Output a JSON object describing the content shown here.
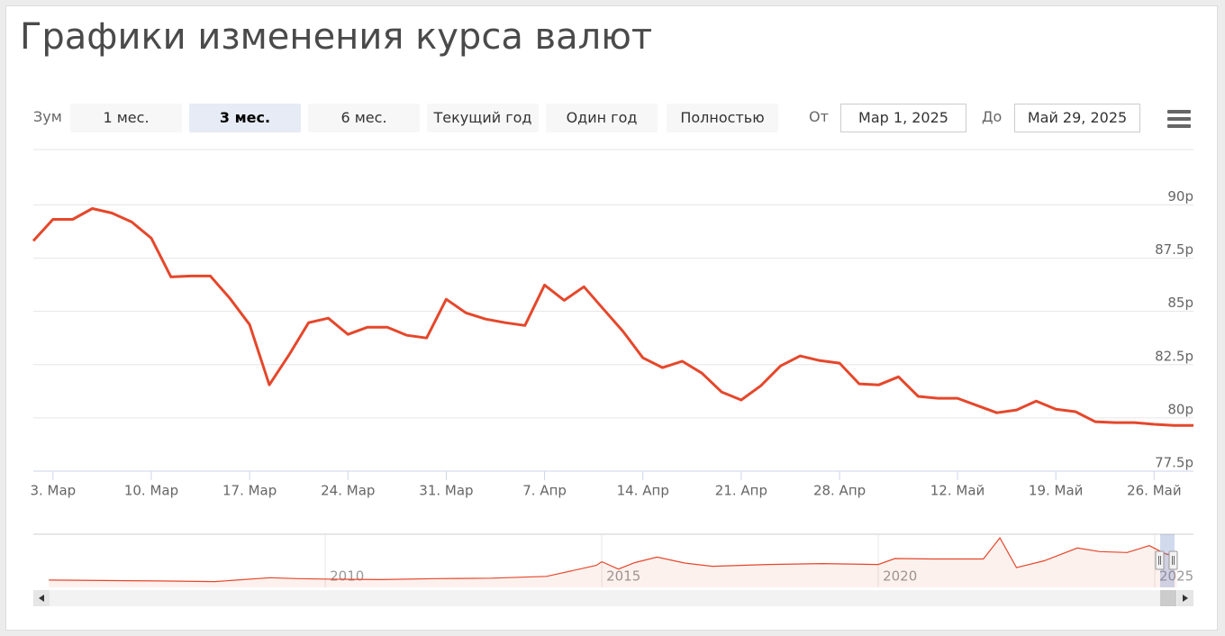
{
  "page": {
    "title": "Графики изменения курса валют",
    "zoom_label": "Зум",
    "zoom_buttons": [
      "1 мес.",
      "3 мес.",
      "6 мес.",
      "Текущий год",
      "Один год",
      "Полностью"
    ],
    "selected_zoom": 1,
    "from_label": "От",
    "from": "Мар 1, 2025",
    "to_label": "До",
    "to": "Май 29, 2025"
  },
  "chart_data": [
    {
      "type": "line",
      "color": "#e5472b",
      "categories": [
        null,
        "3. Мар",
        null,
        null,
        null,
        null,
        "10. Мар",
        null,
        null,
        null,
        null,
        "17. Мар",
        null,
        null,
        null,
        null,
        "24. Мар",
        null,
        null,
        null,
        null,
        "31. Мар",
        null,
        null,
        null,
        null,
        "7. Апр",
        null,
        null,
        null,
        null,
        "14. Апр",
        null,
        null,
        null,
        null,
        "21. Апр",
        null,
        null,
        null,
        null,
        "28. Апр",
        null,
        null,
        null,
        null,
        null,
        "12. Май",
        null,
        null,
        null,
        null,
        "19. Май",
        null,
        null,
        null,
        null,
        "26. Май",
        null,
        null
      ],
      "values": [
        88.31,
        89.32,
        89.32,
        89.83,
        89.62,
        89.2,
        88.44,
        86.62,
        86.66,
        86.66,
        85.61,
        84.38,
        81.55,
        82.95,
        84.47,
        84.68,
        83.92,
        84.26,
        84.26,
        83.88,
        83.75,
        85.57,
        84.93,
        84.64,
        84.47,
        84.34,
        86.24,
        85.52,
        86.16,
        85.1,
        84.05,
        82.82,
        82.36,
        82.66,
        82.1,
        81.22,
        80.84,
        81.51,
        82.44,
        82.91,
        82.69,
        82.57,
        81.6,
        81.55,
        81.93,
        81.01,
        80.92,
        80.92,
        80.58,
        80.24,
        80.37,
        80.79,
        80.41,
        80.29,
        79.82,
        79.78,
        79.78,
        79.7,
        79.65,
        79.65
      ],
      "ylim": [
        77.5,
        92.6
      ],
      "yticks": [
        {
          "value": 77.5,
          "label": "77.5р"
        },
        {
          "value": 80,
          "label": "80р"
        },
        {
          "value": 82.5,
          "label": "82.5р"
        },
        {
          "value": 85,
          "label": "85р"
        },
        {
          "value": 87.5,
          "label": "87.5р"
        },
        {
          "value": 90,
          "label": "90р"
        }
      ],
      "grid": true
    },
    {
      "type": "area",
      "color": "#e5472b",
      "x": [
        2005.0,
        2006.0,
        2007.0,
        2008.0,
        2009.0,
        2009.5,
        2010.0,
        2011.0,
        2012.0,
        2013.0,
        2014.0,
        2014.9,
        2015.0,
        2015.3,
        2015.6,
        2016.0,
        2016.5,
        2017.0,
        2018.0,
        2019.0,
        2020.0,
        2020.3,
        2021.0,
        2021.9,
        2022.2,
        2022.5,
        2023.0,
        2023.6,
        2024.0,
        2024.5,
        2024.9,
        2025.2,
        2025.4
      ],
      "values": [
        28,
        27,
        26,
        24.5,
        33,
        31,
        30,
        29,
        31,
        32,
        36,
        60,
        68,
        52,
        66,
        78,
        65,
        58,
        62,
        64,
        62,
        75,
        74,
        74,
        120,
        55,
        70,
        98,
        90,
        88,
        103,
        85,
        80
      ],
      "xlim": [
        2004.72,
        2025.7
      ],
      "ylim": [
        12,
        128
      ],
      "xticks": [
        2010,
        2015,
        2020,
        2025
      ],
      "grid": true
    }
  ]
}
